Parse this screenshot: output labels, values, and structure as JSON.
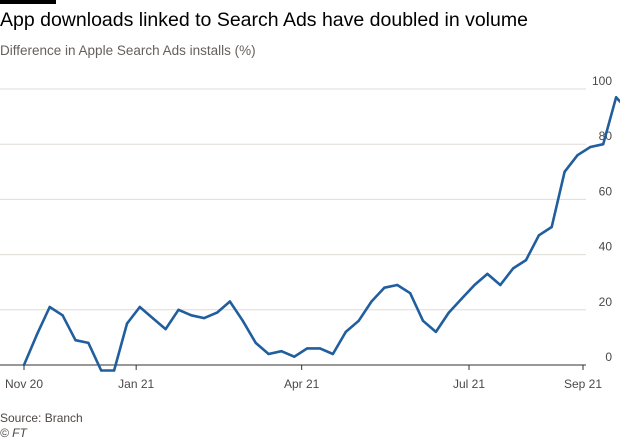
{
  "header": {
    "title": "App downloads linked to Search Ads have doubled in volume",
    "subtitle": "Difference in Apple Search Ads installs (%)"
  },
  "footer": {
    "source": "Source: Branch",
    "copyright": "© FT"
  },
  "colors": {
    "line": "#205e9e",
    "grid": "#e0dcd7",
    "baseline": "#33302e"
  },
  "chart_data": {
    "type": "line",
    "title": "App downloads linked to Search Ads have doubled in volume",
    "subtitle": "Difference in Apple Search Ads installs (%)",
    "xlabel": "",
    "ylabel": "",
    "ylim": [
      0,
      100
    ],
    "y_ticks": [
      0,
      20,
      40,
      60,
      80,
      100
    ],
    "y_axis_side": "right",
    "x_ticks": [
      {
        "label": "Nov 20",
        "date": "2020-11-01"
      },
      {
        "label": "Jan 21",
        "date": "2021-01-01"
      },
      {
        "label": "Apr 21",
        "date": "2021-04-01"
      },
      {
        "label": "Jul 21",
        "date": "2021-07-01"
      },
      {
        "label": "Sep 21",
        "date": "2021-09-01"
      }
    ],
    "grid": true,
    "series": [
      {
        "x": [
          "2020-11-01",
          "2020-11-08",
          "2020-11-15",
          "2020-11-22",
          "2020-11-29",
          "2020-12-06",
          "2020-12-13",
          "2020-12-20",
          "2020-12-27",
          "2021-01-03",
          "2021-01-10",
          "2021-01-17",
          "2021-01-24",
          "2021-01-31",
          "2021-02-07",
          "2021-02-14",
          "2021-02-21",
          "2021-02-28",
          "2021-03-07",
          "2021-03-14",
          "2021-03-21",
          "2021-03-28",
          "2021-04-04",
          "2021-04-11",
          "2021-04-18",
          "2021-04-25",
          "2021-05-02",
          "2021-05-09",
          "2021-05-16",
          "2021-05-23",
          "2021-05-30",
          "2021-06-06",
          "2021-06-13",
          "2021-06-20",
          "2021-06-27",
          "2021-07-04",
          "2021-07-11",
          "2021-07-18",
          "2021-07-25",
          "2021-08-01",
          "2021-08-08",
          "2021-08-15",
          "2021-08-22",
          "2021-08-29",
          "2021-09-05",
          "2021-09-12",
          "2021-09-19",
          "2021-09-26"
        ],
        "values": [
          0,
          11,
          21,
          18,
          9,
          8,
          -2,
          -2,
          15,
          21,
          17,
          13,
          20,
          18,
          17,
          19,
          23,
          16,
          8,
          4,
          5,
          3,
          6,
          6,
          4,
          12,
          16,
          23,
          28,
          29,
          26,
          16,
          12,
          19,
          24,
          29,
          33,
          29,
          35,
          38,
          47,
          50,
          70,
          76,
          79,
          80,
          97,
          92
        ]
      }
    ]
  }
}
